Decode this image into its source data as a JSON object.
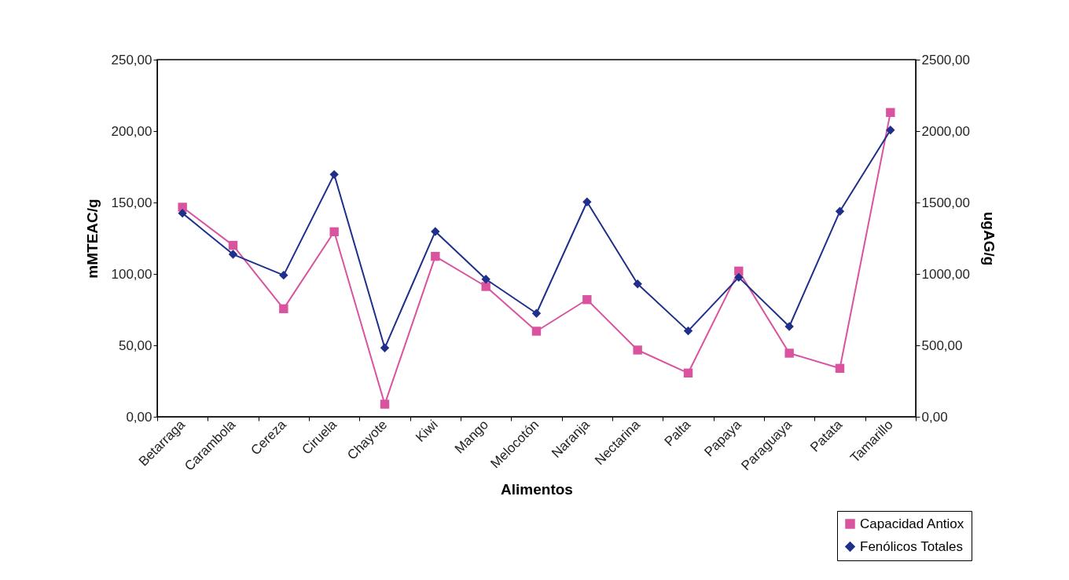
{
  "chart_data": {
    "type": "line",
    "categories": [
      "Betarraga",
      "Carambola",
      "Cereza",
      "Ciruela",
      "Chayote",
      "Kiwi",
      "Mango",
      "Melocotón",
      "Naranja",
      "Nectarina",
      "Palta",
      "Papaya",
      "Paraguaya",
      "Patata",
      "Tamarillo"
    ],
    "xlabel": "Alimentos",
    "ylabel": "mMTEAC/g",
    "y2label": "ugAG/g",
    "series": [
      {
        "name": "Capacidad Antiox",
        "color": "#d9539f",
        "marker": "square",
        "axis": "y",
        "values": [
          146.7,
          120,
          75.6,
          129.5,
          8.8,
          112.3,
          91.2,
          59.9,
          82,
          46.7,
          30.6,
          102,
          44.5,
          33.9,
          213
        ]
      },
      {
        "name": "Fenólicos Totales",
        "color": "#1f2f8a",
        "marker": "diamond",
        "axis": "y2",
        "values": [
          1425,
          1137,
          991,
          1696,
          482,
          1297,
          963,
          724,
          1504,
          930,
          601,
          976,
          632,
          1438,
          2007
        ]
      }
    ],
    "ylim": [
      0,
      250
    ],
    "yticks": [
      {
        "value": 0,
        "label": "0,00"
      },
      {
        "value": 50,
        "label": "50,00"
      },
      {
        "value": 100,
        "label": "100,00"
      },
      {
        "value": 150,
        "label": "150,00"
      },
      {
        "value": 200,
        "label": "200,00"
      },
      {
        "value": 250,
        "label": "250,00"
      }
    ],
    "y2lim": [
      0,
      2500
    ],
    "y2ticks": [
      {
        "value": 0,
        "label": "0,00"
      },
      {
        "value": 500,
        "label": "500,00"
      },
      {
        "value": 1000,
        "label": "1000,00"
      },
      {
        "value": 1500,
        "label": "1500,00"
      },
      {
        "value": 2000,
        "label": "2000,00"
      },
      {
        "value": 2500,
        "label": "2500,00"
      }
    ],
    "grid": false,
    "legend": "bottom right",
    "line_style": "solid"
  }
}
